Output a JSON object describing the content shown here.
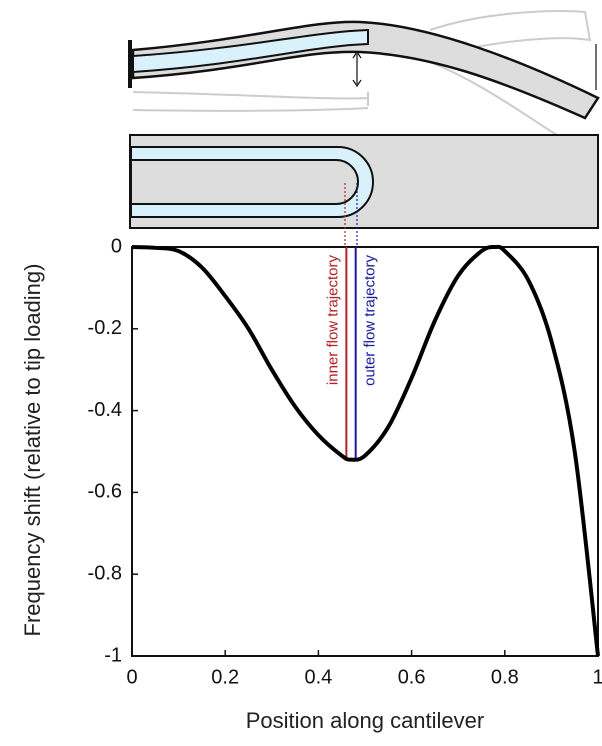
{
  "chart_data": {
    "type": "line",
    "x_label": "Position along cantilever",
    "y_label": "Frequency shift (relative to tip loading)",
    "xlim": [
      0,
      1
    ],
    "ylim": [
      -1,
      0
    ],
    "xticks": [
      0,
      0.2,
      0.4,
      0.6,
      0.8,
      1
    ],
    "yticks": [
      0,
      -0.2,
      -0.4,
      -0.6,
      -0.8,
      -1
    ],
    "series": [
      {
        "color": "#000000",
        "x": [
          0,
          0.05,
          0.1,
          0.15,
          0.2,
          0.25,
          0.3,
          0.35,
          0.4,
          0.45,
          0.47,
          0.5,
          0.55,
          0.6,
          0.65,
          0.7,
          0.75,
          0.78,
          0.8,
          0.85,
          0.9,
          0.95,
          1
        ],
        "values": [
          0,
          -0.002,
          -0.01,
          -0.05,
          -0.12,
          -0.2,
          -0.3,
          -0.39,
          -0.46,
          -0.51,
          -0.52,
          -0.51,
          -0.44,
          -0.32,
          -0.18,
          -0.07,
          -0.01,
          0,
          -0.01,
          -0.08,
          -0.23,
          -0.5,
          -1
        ]
      }
    ],
    "annotations": [
      {
        "text": "inner flow trajectory",
        "x": 0.46,
        "color": "#b22222",
        "side": "left"
      },
      {
        "text": "outer flow trajectory",
        "x": 0.48,
        "color": "#1a1a9a",
        "side": "right"
      }
    ]
  }
}
